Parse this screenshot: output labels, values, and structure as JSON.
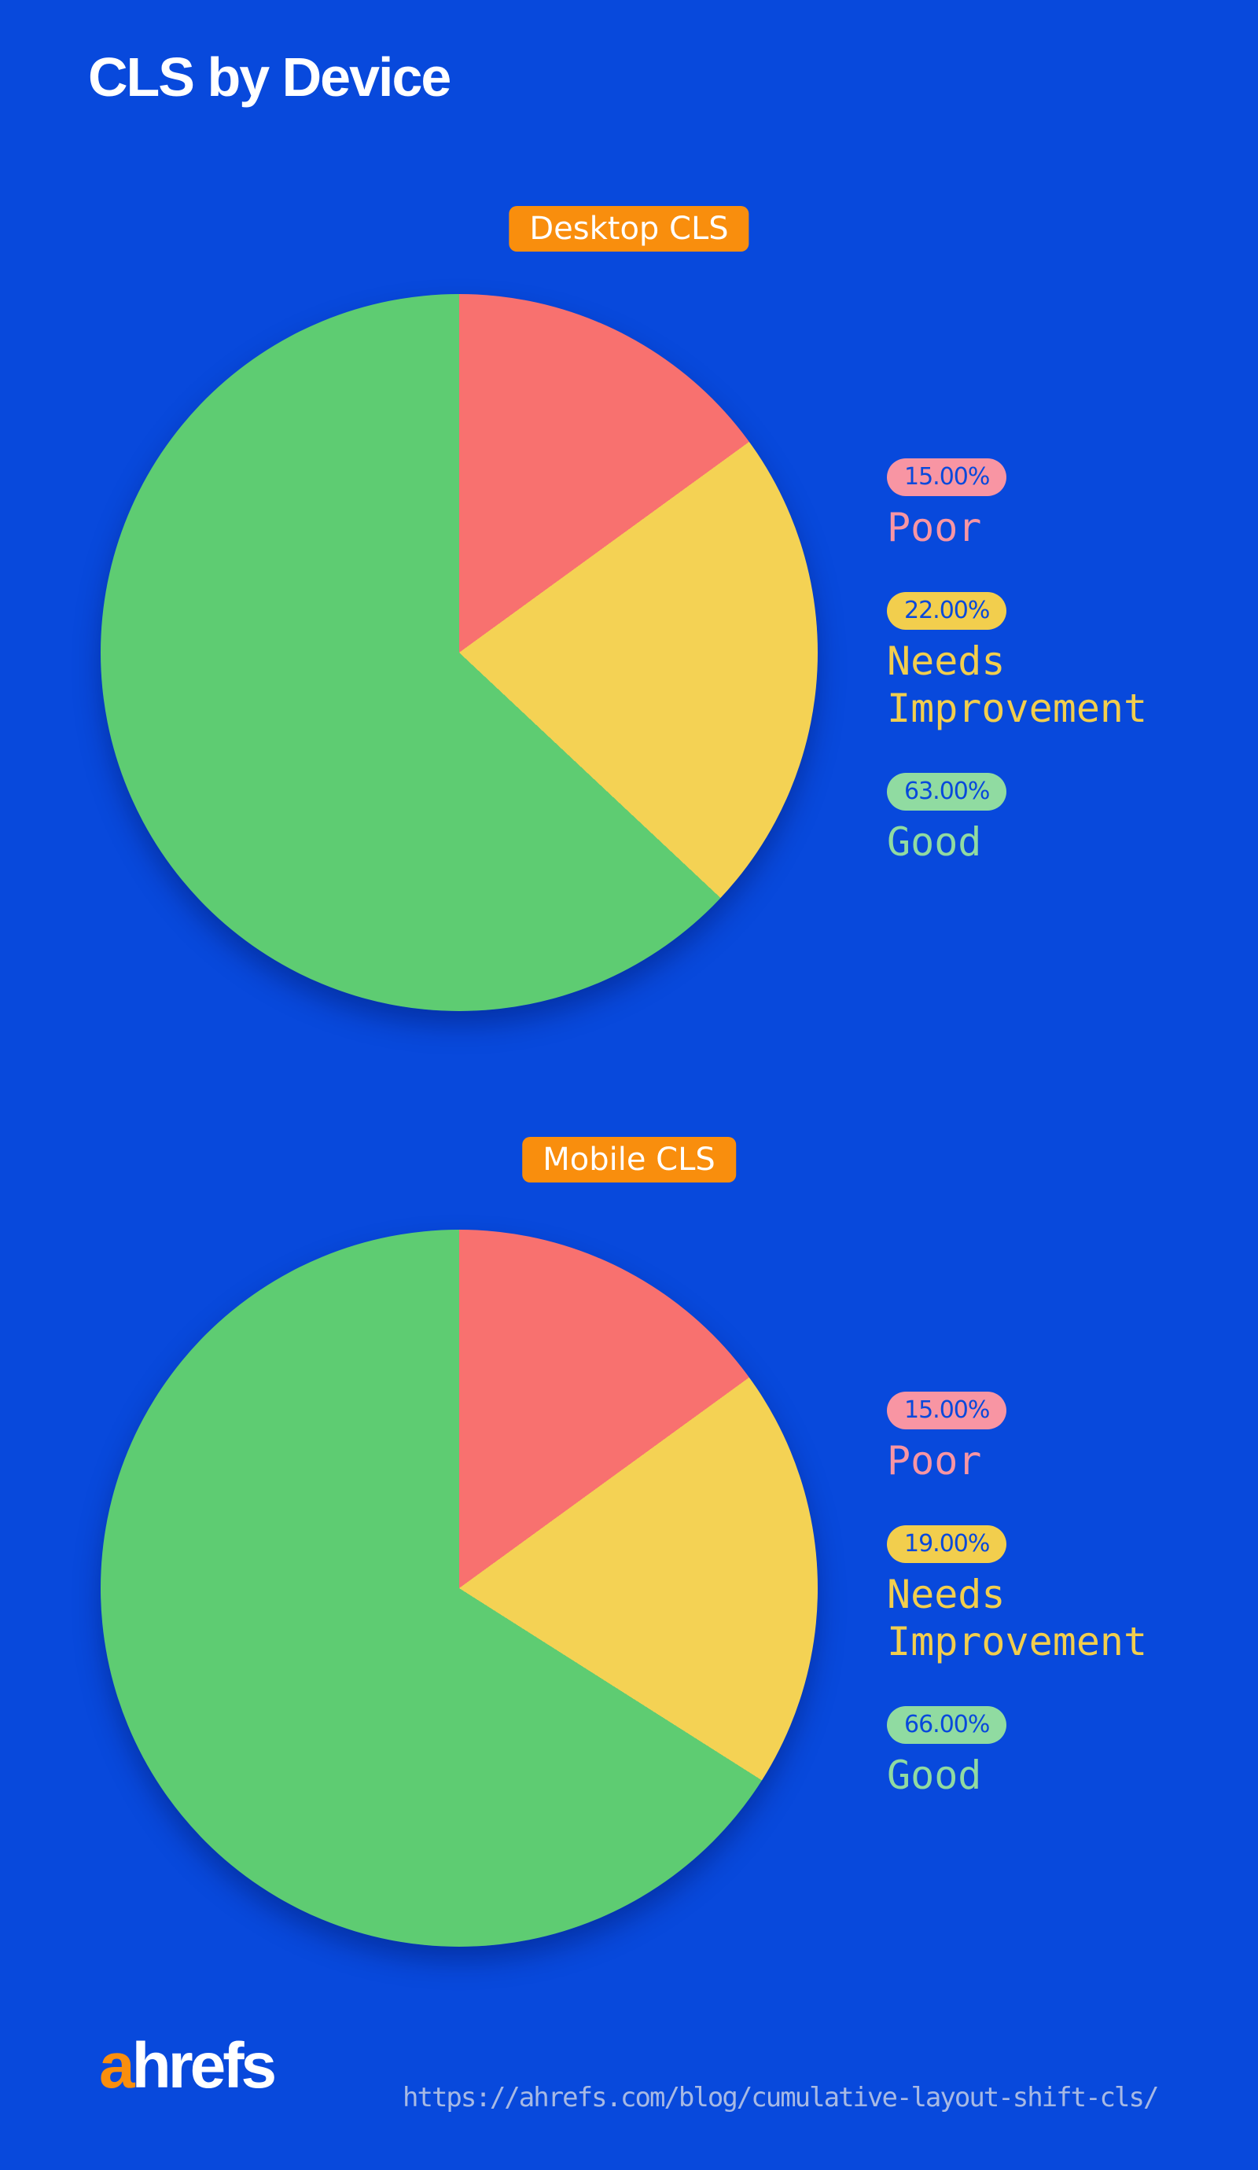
{
  "title": "CLS by Device",
  "colors": {
    "background": "#0849DC",
    "badge_bg": "#F98E0D",
    "badge_text": "#FFFFFF",
    "pill_text": "#0849DC",
    "url_text": "#A7B9E4",
    "logo_accent": "#F98E0D",
    "logo_text": "#FFFFFF"
  },
  "chart_data": [
    {
      "type": "pie",
      "title": "Desktop CLS",
      "start_angle_deg": 0,
      "direction": "clockwise",
      "legend_position": "right",
      "slices": [
        {
          "label": "Poor",
          "value": 15.0,
          "display": "15.00%",
          "color": "#F8716F",
          "pill_color": "#F895A3",
          "text_color": "#F895A3"
        },
        {
          "label": "Needs Improvement",
          "value": 22.0,
          "display": "22.00%",
          "color": "#F4D254",
          "pill_color": "#F2CE4D",
          "text_color": "#F2CE4D"
        },
        {
          "label": "Good",
          "value": 63.0,
          "display": "63.00%",
          "color": "#5ECC72",
          "pill_color": "#90DBA1",
          "text_color": "#90DBA1"
        }
      ]
    },
    {
      "type": "pie",
      "title": "Mobile CLS",
      "start_angle_deg": 0,
      "direction": "clockwise",
      "legend_position": "right",
      "slices": [
        {
          "label": "Poor",
          "value": 15.0,
          "display": "15.00%",
          "color": "#F8716F",
          "pill_color": "#F895A3",
          "text_color": "#F895A3"
        },
        {
          "label": "Needs Improvement",
          "value": 19.0,
          "display": "19.00%",
          "color": "#F4D254",
          "pill_color": "#F2CE4D",
          "text_color": "#F2CE4D"
        },
        {
          "label": "Good",
          "value": 66.0,
          "display": "66.00%",
          "color": "#5ECC72",
          "pill_color": "#90DBA1",
          "text_color": "#90DBA1"
        }
      ]
    }
  ],
  "footer": {
    "logo_prefix": "a",
    "logo_suffix": "hrefs",
    "url": "https://ahrefs.com/blog/cumulative-layout-shift-cls/"
  }
}
